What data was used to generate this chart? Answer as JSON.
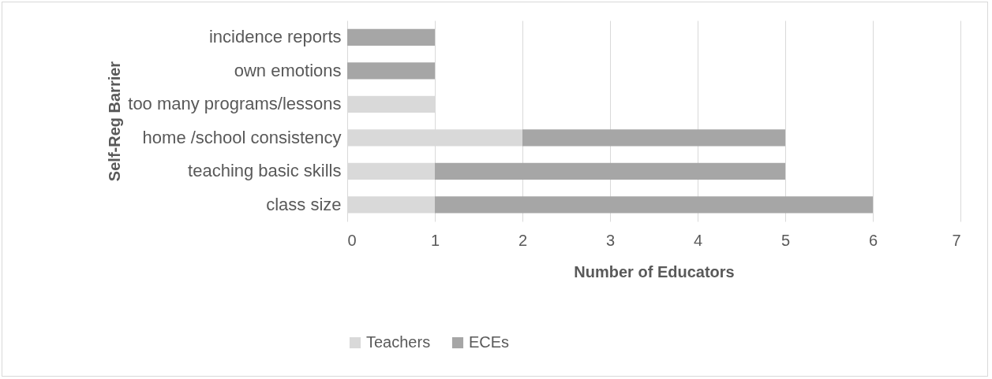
{
  "chart_data": {
    "type": "bar",
    "orientation": "horizontal",
    "stacked": true,
    "xlabel": "Number of Educators",
    "ylabel": "Self-Reg Barrier",
    "categories": [
      "incidence reports",
      "own emotions",
      "too many programs/lessons",
      "home /school consistency",
      "teaching basic skills",
      "class size"
    ],
    "series": [
      {
        "name": "Teachers",
        "color": "#d9d9d9",
        "values": [
          0,
          0,
          1,
          2,
          1,
          1
        ]
      },
      {
        "name": "ECEs",
        "color": "#a6a6a6",
        "values": [
          1,
          1,
          0,
          3,
          4,
          5
        ]
      }
    ],
    "xlim": [
      0,
      7
    ],
    "xticks": [
      0,
      1,
      2,
      3,
      4,
      5,
      6,
      7
    ],
    "grid": "x",
    "legend": "bottom"
  }
}
